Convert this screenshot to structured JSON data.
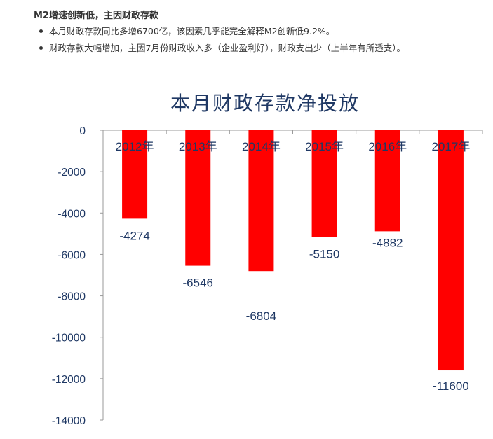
{
  "article": {
    "heading": "M2增速创新低，主因财政存款",
    "bullets": [
      "本月财政存款同比多增6700亿，该因素几乎能完全解释M2创新低9.2%。",
      "财政存款大幅增加，主因7月份财政收入多（企业盈利好），财政支出少（上半年有所透支）。"
    ]
  },
  "chart_data": {
    "type": "bar",
    "title": "本月财政存款净投放",
    "categories": [
      "2012年",
      "2013年",
      "2014年",
      "2015年",
      "2016年",
      "2017年"
    ],
    "series": [
      {
        "values": [
          -4274,
          -6546,
          -6804,
          -5150,
          -4882,
          -11600
        ]
      }
    ],
    "data_labels": [
      "-4274",
      "-6546",
      "-6804",
      "-5150",
      "-4882",
      "-11600"
    ],
    "y_ticks": [
      "0",
      "-2000",
      "-4000",
      "-6000",
      "-8000",
      "-10000",
      "-12000",
      "-14000"
    ],
    "ylim": [
      -14000,
      0
    ],
    "grid": false,
    "legend": "none",
    "bar_color": "#ff0000",
    "text_color": "#1f3864"
  }
}
